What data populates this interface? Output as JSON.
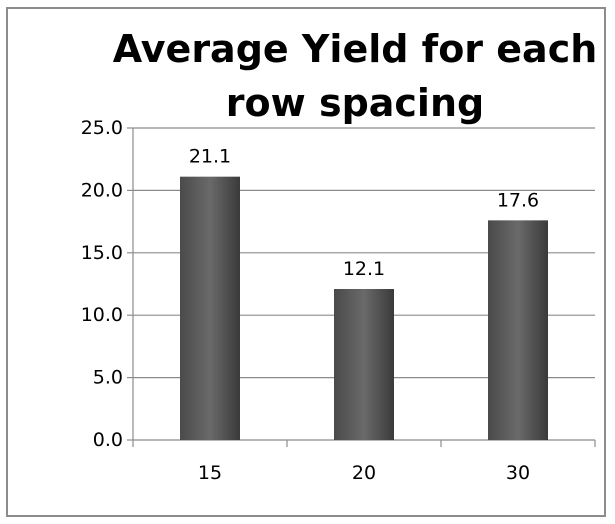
{
  "chart_data": {
    "type": "bar",
    "title": "Average Yield for each row spacing",
    "title_lines": [
      "Average Yield for each",
      "row spacing"
    ],
    "categories": [
      "15",
      "20",
      "30"
    ],
    "values": [
      21.1,
      12.1,
      17.6
    ],
    "data_labels": [
      "21.1",
      "12.1",
      "17.6"
    ],
    "xlabel": "",
    "ylabel": "",
    "ylim": [
      0,
      25
    ],
    "y_ticks": [
      0,
      5,
      10,
      15,
      20,
      25
    ],
    "y_tick_labels": [
      "0.0",
      "5.0",
      "10.0",
      "15.0",
      "20.0",
      "25.0"
    ],
    "grid": true,
    "legend": false,
    "colors": {
      "bar_light": "#6a6a6a",
      "bar_dark": "#3a3a3a",
      "grid": "#8c8c8c",
      "axis": "#8c8c8c",
      "frame": "#8c8c8c"
    }
  }
}
